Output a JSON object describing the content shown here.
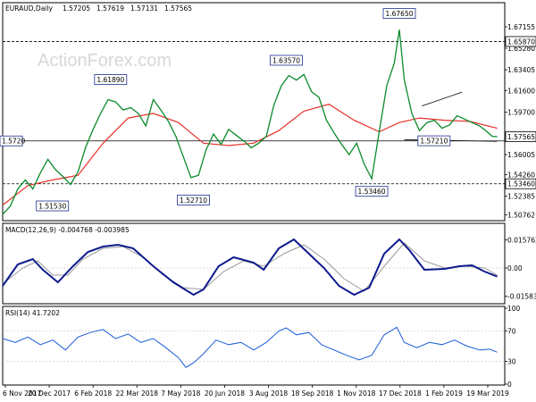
{
  "chart_data": {
    "type": "line",
    "header": {
      "symbol": "EURAUD,Daily",
      "open": "1.57205",
      "high": "1.57619",
      "low": "1.57131",
      "close": "1.57565"
    },
    "watermark": "ActionForex.com",
    "x_ticks": [
      "6 Nov 2017",
      "20 Dec 2017",
      "6 Feb 2018",
      "22 Mar 2018",
      "7 May 2018",
      "20 Jun 2018",
      "3 Aug 2018",
      "18 Sep 2018",
      "1 Nov 2018",
      "17 Dec 2018",
      "1 Feb 2019",
      "19 Mar 2019"
    ],
    "price": {
      "ylim": [
        1.504,
        1.691
      ],
      "y_ticks": [
        "1.67155",
        "1.65280",
        "1.63405",
        "1.61600",
        "1.59700",
        "1.56005",
        "1.54260",
        "1.52385",
        "1.50762"
      ],
      "y_tick_values": [
        1.67155,
        1.6528,
        1.63405,
        1.616,
        1.597,
        1.56005,
        1.5426,
        1.52385,
        1.50762
      ],
      "highlight_labels": [
        {
          "text": "1.65870",
          "value": 1.6587
        },
        {
          "text": "1.57565",
          "value": 1.57565
        },
        {
          "text": "1.53460",
          "value": 1.5346
        }
      ],
      "hlines": [
        {
          "value": 1.6587,
          "color": "#000000",
          "dash": true,
          "from": 0.0,
          "to": 1.0
        },
        {
          "value": 1.572,
          "color": "#000000",
          "dash": false,
          "from": 0.0,
          "to": 1.0
        },
        {
          "value": 1.5346,
          "color": "#000000",
          "dash": true,
          "from": 0.0,
          "to": 1.0
        }
      ],
      "left_label": {
        "text": "1.5720",
        "value": 1.572
      },
      "annotations": [
        {
          "text": "1.51530",
          "t": 0.06,
          "value": 1.5153,
          "box_at": "right"
        },
        {
          "text": "1.61890",
          "t": 0.215,
          "value": 1.6189,
          "box_at": "above"
        },
        {
          "text": "1.52710",
          "t": 0.38,
          "value": 1.5271,
          "box_at": "below"
        },
        {
          "text": "1.63570",
          "t": 0.565,
          "value": 1.6357,
          "box_at": "above"
        },
        {
          "text": "1.53460",
          "t": 0.735,
          "value": 1.5346,
          "box_at": "below"
        },
        {
          "text": "1.67650",
          "t": 0.79,
          "value": 1.6765,
          "box_at": "above"
        },
        {
          "text": "1.57210",
          "t": 0.82,
          "value": 1.5721,
          "box_at": "right"
        }
      ],
      "trendlines": [
        {
          "t1": 0.835,
          "v1": 1.6025,
          "t2": 0.915,
          "v2": 1.6145
        },
        {
          "t1": 0.8,
          "v1": 1.573,
          "t2": 0.985,
          "v2": 1.5716
        }
      ],
      "close_points": [
        [
          0.0,
          1.508
        ],
        [
          0.015,
          1.515
        ],
        [
          0.03,
          1.53
        ],
        [
          0.045,
          1.538
        ],
        [
          0.06,
          1.53
        ],
        [
          0.075,
          1.544
        ],
        [
          0.09,
          1.556
        ],
        [
          0.105,
          1.547
        ],
        [
          0.12,
          1.541
        ],
        [
          0.135,
          1.534
        ],
        [
          0.15,
          1.545
        ],
        [
          0.165,
          1.566
        ],
        [
          0.18,
          1.582
        ],
        [
          0.195,
          1.596
        ],
        [
          0.21,
          1.608
        ],
        [
          0.225,
          1.606
        ],
        [
          0.24,
          1.599
        ],
        [
          0.255,
          1.601
        ],
        [
          0.27,
          1.596
        ],
        [
          0.285,
          1.585
        ],
        [
          0.3,
          1.608
        ],
        [
          0.315,
          1.599
        ],
        [
          0.33,
          1.589
        ],
        [
          0.345,
          1.576
        ],
        [
          0.36,
          1.558
        ],
        [
          0.375,
          1.54
        ],
        [
          0.39,
          1.542
        ],
        [
          0.405,
          1.564
        ],
        [
          0.42,
          1.578
        ],
        [
          0.435,
          1.569
        ],
        [
          0.45,
          1.582
        ],
        [
          0.465,
          1.577
        ],
        [
          0.48,
          1.572
        ],
        [
          0.495,
          1.566
        ],
        [
          0.51,
          1.57
        ],
        [
          0.525,
          1.576
        ],
        [
          0.54,
          1.603
        ],
        [
          0.555,
          1.62
        ],
        [
          0.57,
          1.629
        ],
        [
          0.585,
          1.625
        ],
        [
          0.6,
          1.63
        ],
        [
          0.615,
          1.615
        ],
        [
          0.63,
          1.61
        ],
        [
          0.645,
          1.59
        ],
        [
          0.66,
          1.579
        ],
        [
          0.675,
          1.569
        ],
        [
          0.69,
          1.56
        ],
        [
          0.705,
          1.57
        ],
        [
          0.72,
          1.552
        ],
        [
          0.735,
          1.539
        ],
        [
          0.75,
          1.58
        ],
        [
          0.765,
          1.62
        ],
        [
          0.78,
          1.64
        ],
        [
          0.79,
          1.669
        ],
        [
          0.8,
          1.625
        ],
        [
          0.815,
          1.596
        ],
        [
          0.83,
          1.581
        ],
        [
          0.845,
          1.588
        ],
        [
          0.86,
          1.59
        ],
        [
          0.875,
          1.583
        ],
        [
          0.89,
          1.586
        ],
        [
          0.905,
          1.594
        ],
        [
          0.92,
          1.591
        ],
        [
          0.935,
          1.588
        ],
        [
          0.95,
          1.585
        ],
        [
          0.965,
          1.58
        ],
        [
          0.975,
          1.576
        ],
        [
          0.985,
          1.5757
        ]
      ],
      "ma_points": [
        [
          0.0,
          1.516
        ],
        [
          0.05,
          1.533
        ],
        [
          0.1,
          1.538
        ],
        [
          0.15,
          1.542
        ],
        [
          0.2,
          1.57
        ],
        [
          0.25,
          1.592
        ],
        [
          0.3,
          1.596
        ],
        [
          0.35,
          1.588
        ],
        [
          0.4,
          1.57
        ],
        [
          0.45,
          1.568
        ],
        [
          0.5,
          1.57
        ],
        [
          0.55,
          1.581
        ],
        [
          0.6,
          1.598
        ],
        [
          0.65,
          1.604
        ],
        [
          0.7,
          1.59
        ],
        [
          0.75,
          1.58
        ],
        [
          0.79,
          1.588
        ],
        [
          0.83,
          1.592
        ],
        [
          0.88,
          1.59
        ],
        [
          0.93,
          1.589
        ],
        [
          0.985,
          1.583
        ]
      ]
    },
    "macd": {
      "label": "MACD(12,26,9) -0.004768 -0.003985",
      "ylim": [
        -0.019,
        0.019
      ],
      "y_ticks": [
        "0.015762",
        "0.00",
        "-0.015834"
      ],
      "y_tick_values": [
        0.015762,
        0.0,
        -0.015834
      ],
      "macd_points": [
        [
          0.0,
          -0.01
        ],
        [
          0.03,
          0.002
        ],
        [
          0.06,
          0.005
        ],
        [
          0.08,
          -0.001
        ],
        [
          0.11,
          -0.008
        ],
        [
          0.14,
          0.001
        ],
        [
          0.17,
          0.009
        ],
        [
          0.2,
          0.012
        ],
        [
          0.23,
          0.013
        ],
        [
          0.26,
          0.011
        ],
        [
          0.3,
          0.001
        ],
        [
          0.34,
          -0.008
        ],
        [
          0.38,
          -0.015
        ],
        [
          0.4,
          -0.012
        ],
        [
          0.43,
          0.001
        ],
        [
          0.46,
          0.006
        ],
        [
          0.5,
          0.003
        ],
        [
          0.52,
          -0.001
        ],
        [
          0.55,
          0.011
        ],
        [
          0.58,
          0.016
        ],
        [
          0.61,
          0.008
        ],
        [
          0.64,
          0.0
        ],
        [
          0.67,
          -0.01
        ],
        [
          0.7,
          -0.015
        ],
        [
          0.73,
          -0.011
        ],
        [
          0.76,
          0.008
        ],
        [
          0.79,
          0.016
        ],
        [
          0.81,
          0.01
        ],
        [
          0.84,
          -0.001
        ],
        [
          0.88,
          -0.0005
        ],
        [
          0.91,
          0.001
        ],
        [
          0.935,
          0.0015
        ],
        [
          0.96,
          -0.002
        ],
        [
          0.985,
          -0.0048
        ]
      ],
      "signal_points": [
        [
          0.0,
          -0.009
        ],
        [
          0.04,
          0.0
        ],
        [
          0.07,
          0.004
        ],
        [
          0.1,
          -0.004
        ],
        [
          0.13,
          -0.004
        ],
        [
          0.16,
          0.005
        ],
        [
          0.2,
          0.011
        ],
        [
          0.24,
          0.012
        ],
        [
          0.28,
          0.006
        ],
        [
          0.32,
          -0.004
        ],
        [
          0.36,
          -0.011
        ],
        [
          0.4,
          -0.012
        ],
        [
          0.44,
          -0.002
        ],
        [
          0.48,
          0.004
        ],
        [
          0.52,
          0.001
        ],
        [
          0.56,
          0.008
        ],
        [
          0.6,
          0.013
        ],
        [
          0.64,
          0.005
        ],
        [
          0.68,
          -0.006
        ],
        [
          0.72,
          -0.013
        ],
        [
          0.76,
          0.001
        ],
        [
          0.8,
          0.014
        ],
        [
          0.84,
          0.004
        ],
        [
          0.88,
          0.0
        ],
        [
          0.92,
          0.001
        ],
        [
          0.96,
          0.0
        ],
        [
          0.985,
          -0.004
        ]
      ]
    },
    "rsi": {
      "label": "RSI(14) 41.7202",
      "ylim": [
        0,
        100
      ],
      "y_ticks": [
        "100",
        "70",
        "30",
        "0"
      ],
      "y_tick_values": [
        100,
        70,
        30,
        0
      ],
      "points": [
        [
          0.0,
          60
        ],
        [
          0.025,
          55
        ],
        [
          0.05,
          62
        ],
        [
          0.075,
          52
        ],
        [
          0.1,
          58
        ],
        [
          0.125,
          45
        ],
        [
          0.15,
          62
        ],
        [
          0.175,
          68
        ],
        [
          0.2,
          72
        ],
        [
          0.225,
          60
        ],
        [
          0.25,
          66
        ],
        [
          0.275,
          55
        ],
        [
          0.3,
          60
        ],
        [
          0.325,
          48
        ],
        [
          0.35,
          35
        ],
        [
          0.365,
          22
        ],
        [
          0.38,
          28
        ],
        [
          0.4,
          40
        ],
        [
          0.425,
          58
        ],
        [
          0.45,
          52
        ],
        [
          0.475,
          55
        ],
        [
          0.5,
          45
        ],
        [
          0.525,
          55
        ],
        [
          0.55,
          70
        ],
        [
          0.565,
          74
        ],
        [
          0.585,
          65
        ],
        [
          0.61,
          68
        ],
        [
          0.635,
          52
        ],
        [
          0.66,
          45
        ],
        [
          0.685,
          38
        ],
        [
          0.71,
          32
        ],
        [
          0.735,
          38
        ],
        [
          0.76,
          65
        ],
        [
          0.785,
          75
        ],
        [
          0.8,
          55
        ],
        [
          0.825,
          48
        ],
        [
          0.85,
          55
        ],
        [
          0.875,
          52
        ],
        [
          0.9,
          58
        ],
        [
          0.925,
          50
        ],
        [
          0.95,
          45
        ],
        [
          0.97,
          46
        ],
        [
          0.985,
          42
        ]
      ]
    }
  }
}
